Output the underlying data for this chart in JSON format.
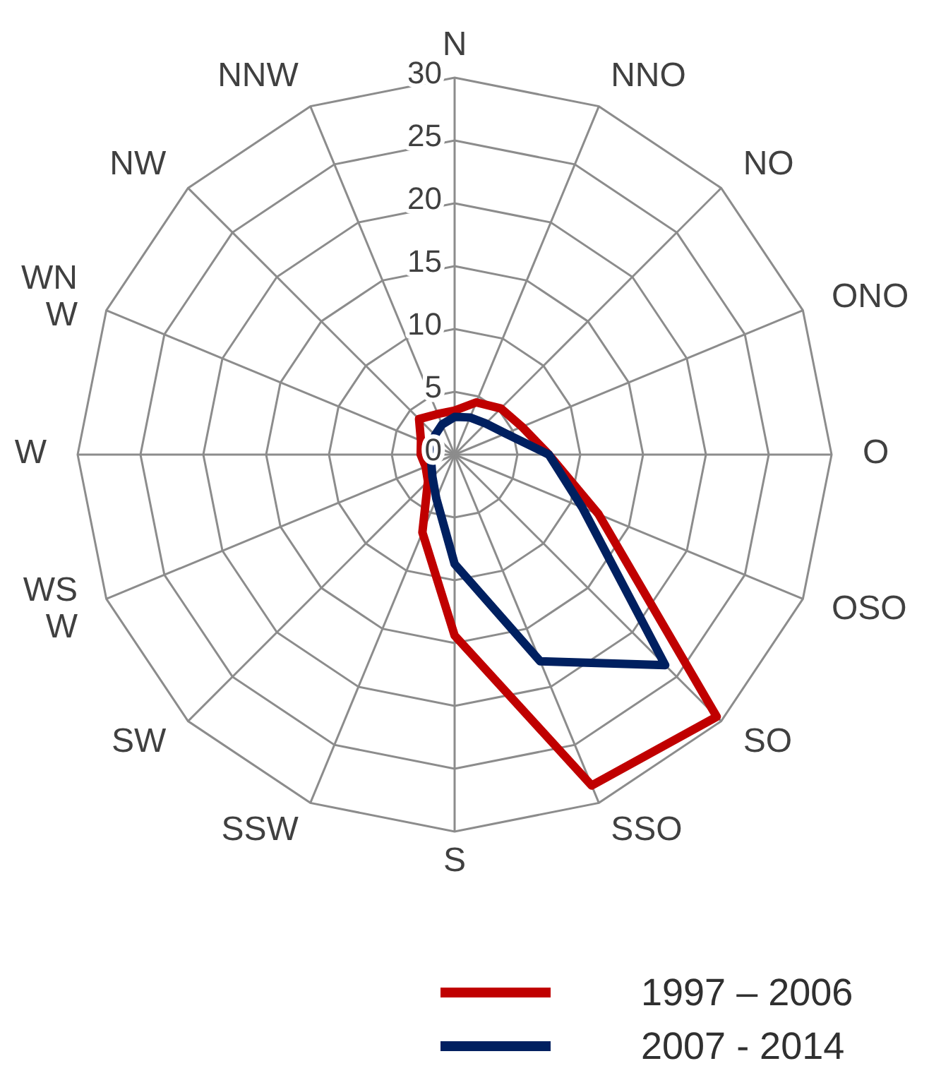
{
  "chart_data": {
    "type": "radar",
    "categories": [
      "N",
      "NNO",
      "NO",
      "ONO",
      "O",
      "OSO",
      "SO",
      "SSO",
      "S",
      "SSW",
      "SW",
      "WSW",
      "W",
      "WNW",
      "NW",
      "NNW"
    ],
    "series": [
      {
        "name": "1997 – 2006",
        "color": "#c00000",
        "values": [
          3.5,
          4.5,
          5.2,
          5.8,
          7.5,
          12.4,
          29.5,
          28.5,
          14.4,
          6.7,
          3,
          2.5,
          2.7,
          2.9,
          4,
          3.5
        ]
      },
      {
        "name": "2007 - 2014",
        "color": "#002060",
        "values": [
          3,
          3.2,
          3.5,
          4.4,
          7.5,
          11,
          23.7,
          17.8,
          8.7,
          3.8,
          2.5,
          2,
          1.7,
          1.8,
          2.2,
          2.6
        ]
      }
    ],
    "ylim": [
      0,
      30
    ],
    "yticks": [
      0,
      5,
      10,
      15,
      20,
      25,
      30
    ],
    "grid": true,
    "legend": "bottom right",
    "marker": "none",
    "line_style": "solid"
  }
}
